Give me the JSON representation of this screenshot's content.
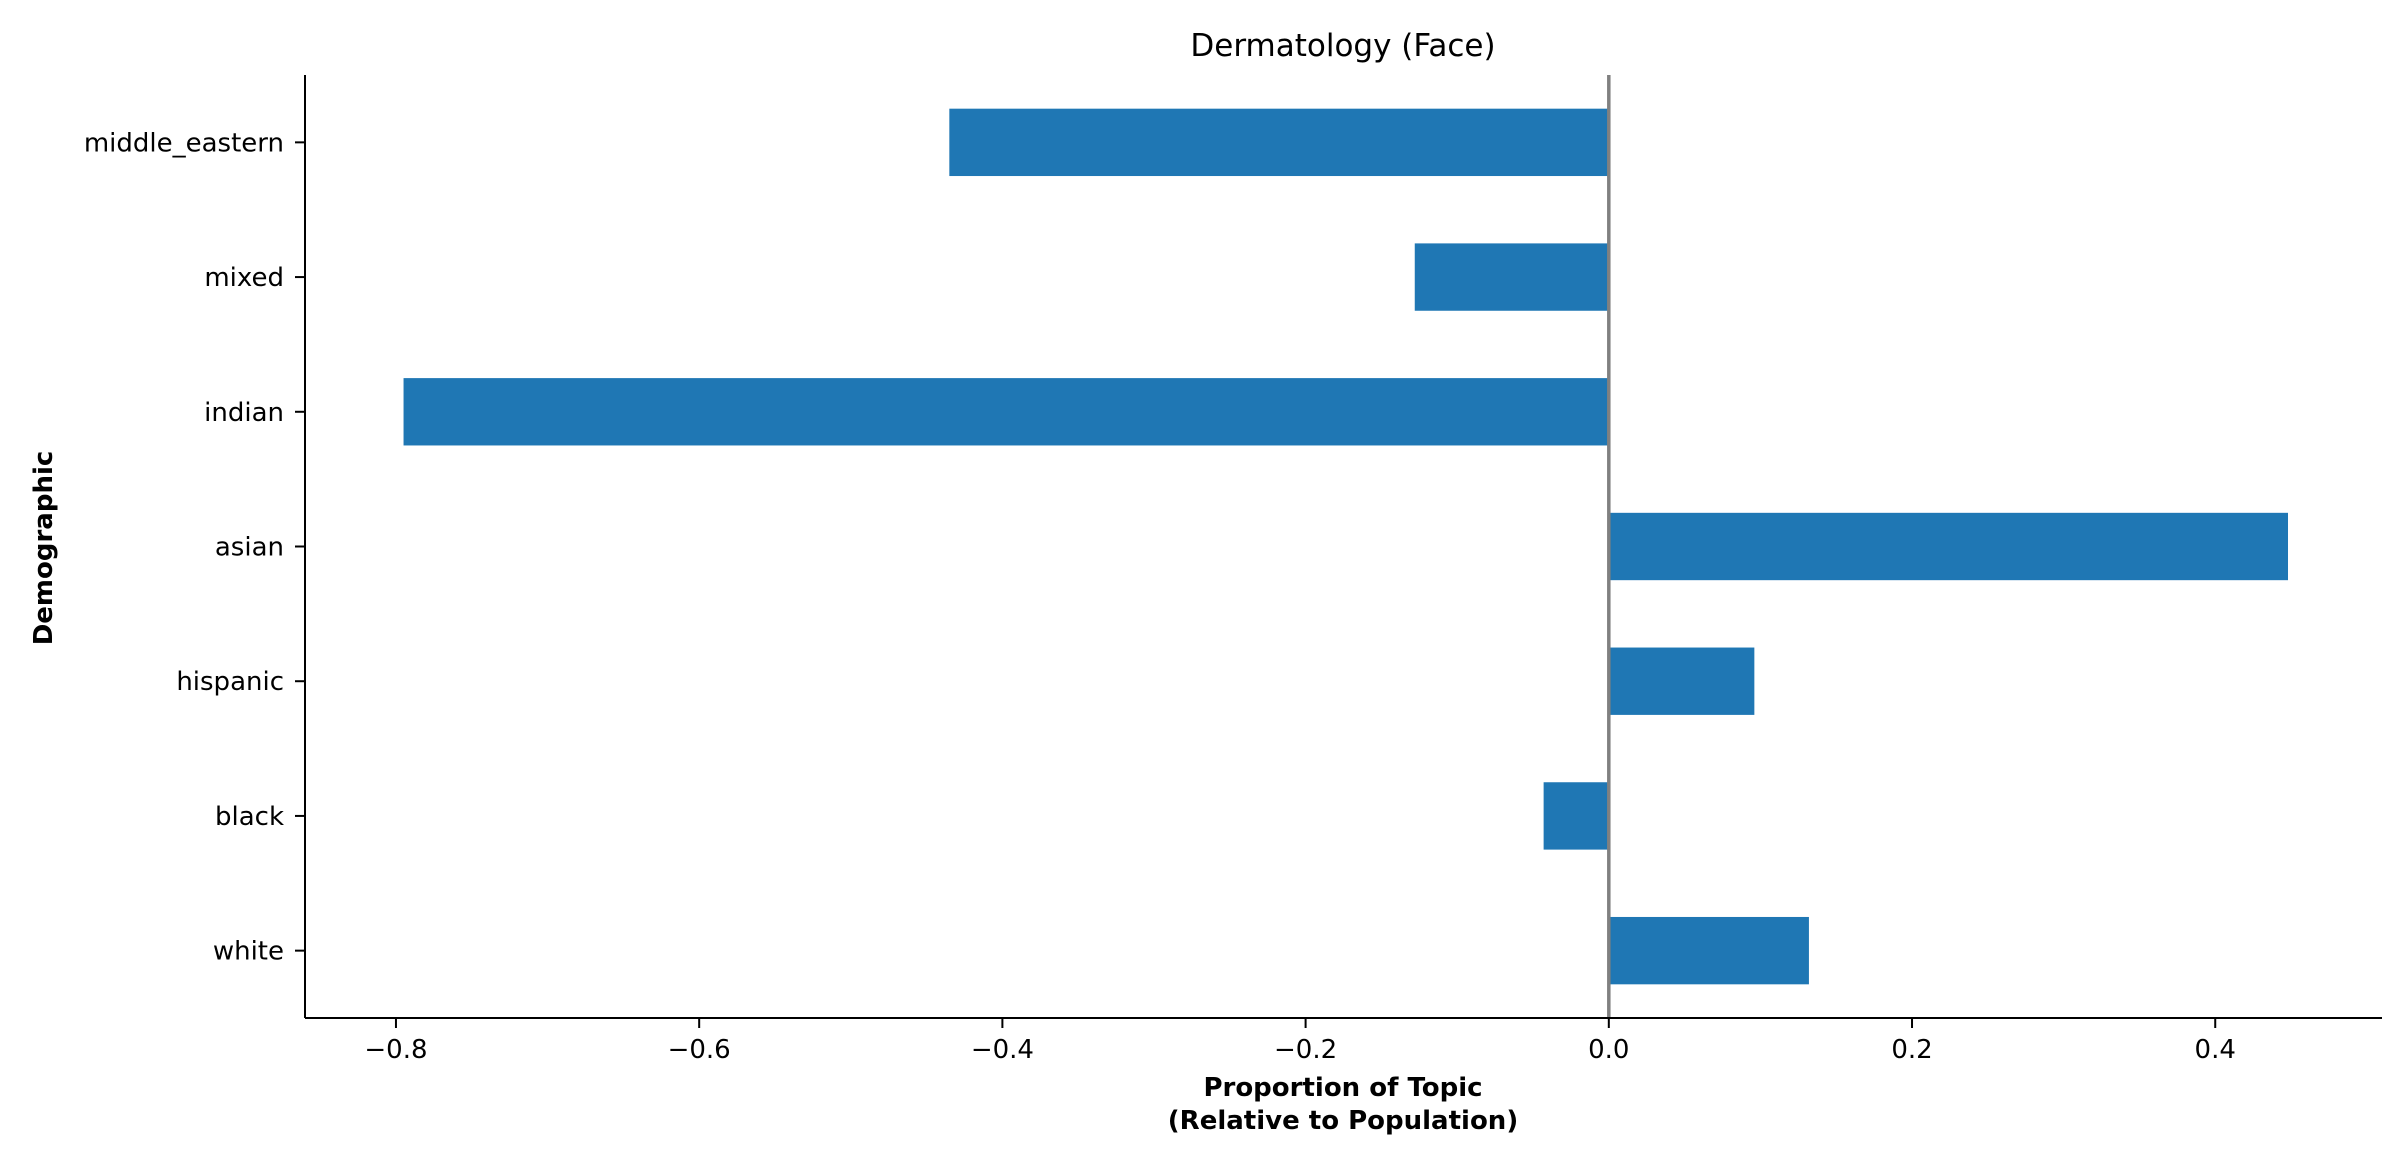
{
  "chart_data": {
    "type": "bar",
    "orientation": "horizontal",
    "title": "Dermatology (Face)",
    "xlabel_lines": [
      "Proportion of Topic",
      "(Relative to Population)"
    ],
    "ylabel": "Demographic",
    "categories": [
      "white",
      "black",
      "hispanic",
      "asian",
      "indian",
      "mixed",
      "middle_eastern"
    ],
    "values": [
      0.132,
      -0.043,
      0.096,
      0.448,
      -0.795,
      -0.128,
      -0.435
    ],
    "xlim": [
      -0.86,
      0.51
    ],
    "xticks": [
      -0.8,
      -0.6,
      -0.4,
      -0.2,
      0.0,
      0.2,
      0.4
    ],
    "xtick_labels": [
      "−0.8",
      "−0.6",
      "−0.4",
      "−0.2",
      "0.0",
      "0.2",
      "0.4"
    ],
    "bar_color": "#1f77b4",
    "zero_line_color": "#808080",
    "grid": false,
    "legend": "none"
  }
}
